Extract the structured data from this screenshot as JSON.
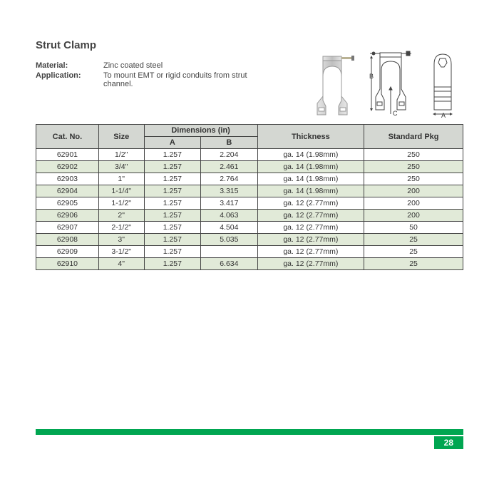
{
  "title": "Strut Clamp",
  "material_label": "Material:",
  "material_value": "Zinc coated steel",
  "application_label": "Application:",
  "application_value": "To mount EMT or rigid conduits from strut channel.",
  "dim_labels": {
    "A": "A",
    "B": "B",
    "C": "C"
  },
  "headers": {
    "cat": "Cat. No.",
    "size": "Size",
    "dims": "Dimensions (in)",
    "dimA": "A",
    "dimB": "B",
    "thickness": "Thickness",
    "stdpkg": "Standard Pkg"
  },
  "rows": [
    {
      "cat": "62901",
      "size": "1/2\"",
      "A": "1.257",
      "B": "2.204",
      "thick": "ga. 14 (1.98mm)",
      "pkg": "250"
    },
    {
      "cat": "62902",
      "size": "3/4\"",
      "A": "1.257",
      "B": "2.461",
      "thick": "ga. 14 (1.98mm)",
      "pkg": "250"
    },
    {
      "cat": "62903",
      "size": "1\"",
      "A": "1.257",
      "B": "2.764",
      "thick": "ga. 14 (1.98mm)",
      "pkg": "250"
    },
    {
      "cat": "62904",
      "size": "1-1/4\"",
      "A": "1.257",
      "B": "3.315",
      "thick": "ga. 14 (1.98mm)",
      "pkg": "200"
    },
    {
      "cat": "62905",
      "size": "1-1/2\"",
      "A": "1.257",
      "B": "3.417",
      "thick": "ga. 12 (2.77mm)",
      "pkg": "200"
    },
    {
      "cat": "62906",
      "size": "2\"",
      "A": "1.257",
      "B": "4.063",
      "thick": "ga. 12 (2.77mm)",
      "pkg": "200"
    },
    {
      "cat": "62907",
      "size": "2-1/2\"",
      "A": "1.257",
      "B": "4.504",
      "thick": "ga. 12 (2.77mm)",
      "pkg": "50"
    },
    {
      "cat": "62908",
      "size": "3\"",
      "A": "1.257",
      "B": "5.035",
      "thick": "ga. 12 (2.77mm)",
      "pkg": "25"
    },
    {
      "cat": "62909",
      "size": "3-1/2\"",
      "A": "1.257",
      "B": "",
      "thick": "ga. 12 (2.77mm)",
      "pkg": "25"
    },
    {
      "cat": "62910",
      "size": "4\"",
      "A": "1.257",
      "B": "6.634",
      "thick": "ga. 12 (2.77mm)",
      "pkg": "25"
    }
  ],
  "row_colors": {
    "norm": "#ffffff",
    "alt": "#e1ead8"
  },
  "accent_color": "#00a651",
  "header_bg": "#d4d7d2",
  "page_number": "28"
}
